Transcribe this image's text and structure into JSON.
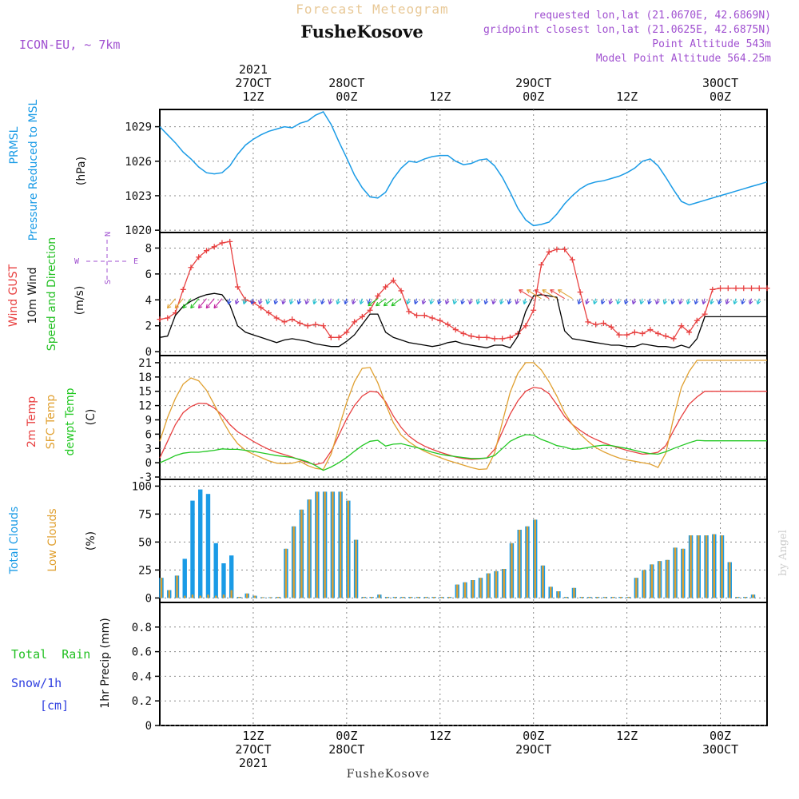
{
  "header": {
    "title": "Forecast Meteogram",
    "location": "FusheKosove",
    "model": "ICON-EU, ~ 7km",
    "requested": "requested lon,lat (21.0670E, 42.6869N)",
    "closest": "gridpoint closest lon,lat (21.0625E, 42.6875N)",
    "point_alt": "Point Altitude 543m",
    "model_alt": "Model Point Altitude 564.25m",
    "footer_location": "FusheKosove",
    "credit": "by Angel"
  },
  "colors": {
    "pressure": "#1a9be6",
    "gust": "#e84040",
    "wind": "#000000",
    "dir": "#22c022",
    "temp": "#e84040",
    "sfc": "#e0a030",
    "dew": "#22c822",
    "total_cloud": "#1a9be6",
    "low_cloud": "#e0a030",
    "rain": "#22c022",
    "snow": "#3040e0",
    "meta": "#a050d0"
  },
  "time_axis": {
    "top_labels": [
      {
        "hour": 12,
        "lines": [
          "2021",
          "27OCT",
          "12Z"
        ]
      },
      {
        "hour": 24,
        "lines": [
          "28OCT",
          "00Z"
        ]
      },
      {
        "hour": 36,
        "lines": [
          "12Z"
        ]
      },
      {
        "hour": 48,
        "lines": [
          "29OCT",
          "00Z"
        ]
      },
      {
        "hour": 60,
        "lines": [
          "12Z"
        ]
      },
      {
        "hour": 72,
        "lines": [
          "30OCT",
          "00Z"
        ]
      }
    ],
    "bottom_labels": [
      {
        "hour": 12,
        "lines": [
          "12Z",
          "27OCT",
          "2021"
        ]
      },
      {
        "hour": 24,
        "lines": [
          "00Z",
          "28OCT"
        ]
      },
      {
        "hour": 36,
        "lines": [
          "12Z"
        ]
      },
      {
        "hour": 48,
        "lines": [
          "00Z",
          "29OCT"
        ]
      },
      {
        "hour": 60,
        "lines": [
          "12Z"
        ]
      },
      {
        "hour": 72,
        "lines": [
          "00Z",
          "30OCT"
        ]
      }
    ]
  },
  "panel_labels": {
    "pressure": {
      "name1": "PRMSL",
      "name2": "Pressure Reduced to MSL",
      "unit": "(hPa)"
    },
    "wind": {
      "gust": "Wind GUST",
      "wind": "10m Wind",
      "dir": "Speed and Direction",
      "unit": "(m/s)",
      "compass_w": "W",
      "compass_e": "E",
      "compass_n": "N",
      "compass_s": "S"
    },
    "temp": {
      "t2m": "2m Temp",
      "sfc": "SFC Temp",
      "dew": "dewpt Temp",
      "unit": "(C)"
    },
    "cloud": {
      "total": "Total Clouds",
      "low": "Low Clouds",
      "unit": "(%)"
    },
    "precip": {
      "rain": "Total  Rain",
      "snow": "Snow/1h",
      "snow_unit": "[cm]",
      "axis": "1hr Precip (mm)"
    }
  },
  "chart_data": [
    {
      "type": "line",
      "name": "pressure",
      "xlabel": "",
      "ylabel": "(hPa)",
      "ylim": [
        1019.8,
        1030.5
      ],
      "yticks": [
        1020,
        1023,
        1026,
        1029
      ],
      "x": [
        0,
        1,
        2,
        3,
        4,
        5,
        6,
        7,
        8,
        9,
        10,
        11,
        12,
        13,
        14,
        15,
        16,
        17,
        18,
        19,
        20,
        21,
        22,
        23,
        24,
        25,
        26,
        27,
        28,
        29,
        30,
        31,
        32,
        33,
        34,
        35,
        36,
        37,
        38,
        39,
        40,
        41,
        42,
        43,
        44,
        45,
        46,
        47,
        48,
        49,
        50,
        51,
        52,
        53,
        54,
        55,
        56,
        57,
        58,
        59,
        60,
        61,
        62,
        63,
        64,
        65,
        66,
        67,
        68,
        69,
        70,
        71,
        72,
        73,
        74,
        75,
        76,
        77,
        78
      ],
      "values": [
        1029.0,
        1028.3,
        1027.6,
        1026.8,
        1026.2,
        1025.5,
        1025.0,
        1024.9,
        1025.0,
        1025.6,
        1026.6,
        1027.4,
        1027.9,
        1028.3,
        1028.6,
        1028.8,
        1029.0,
        1028.9,
        1029.3,
        1029.5,
        1030.0,
        1030.3,
        1029.2,
        1027.7,
        1026.3,
        1024.8,
        1023.7,
        1022.9,
        1022.8,
        1023.3,
        1024.5,
        1025.4,
        1026.0,
        1025.9,
        1026.2,
        1026.4,
        1026.5,
        1026.5,
        1026.0,
        1025.7,
        1025.8,
        1026.1,
        1026.2,
        1025.6,
        1024.6,
        1023.3,
        1021.9,
        1020.9,
        1020.4,
        1020.5,
        1020.7,
        1021.4,
        1022.3,
        1023.0,
        1023.6,
        1024.0,
        1024.2,
        1024.3,
        1024.5,
        1024.7,
        1025.0,
        1025.4,
        1026.0,
        1026.2,
        1025.6,
        1024.6,
        1023.5,
        1022.5,
        1022.2,
        1022.4,
        1022.6,
        1022.8,
        1023.0,
        1023.2,
        1023.4,
        1023.6,
        1023.8,
        1024.0,
        1024.2
      ]
    },
    {
      "type": "line",
      "name": "wind",
      "xlabel": "",
      "ylabel": "(m/s)",
      "ylim": [
        -0.3,
        9.2
      ],
      "yticks": [
        0,
        2,
        4,
        6,
        8
      ],
      "x": [
        0,
        1,
        2,
        3,
        4,
        5,
        6,
        7,
        8,
        9,
        10,
        11,
        12,
        13,
        14,
        15,
        16,
        17,
        18,
        19,
        20,
        21,
        22,
        23,
        24,
        25,
        26,
        27,
        28,
        29,
        30,
        31,
        32,
        33,
        34,
        35,
        36,
        37,
        38,
        39,
        40,
        41,
        42,
        43,
        44,
        45,
        46,
        47,
        48,
        49,
        50,
        51,
        52,
        53,
        54,
        55,
        56,
        57,
        58,
        59,
        60,
        61,
        62,
        63,
        64,
        65,
        66,
        67,
        68,
        69,
        70,
        71,
        72,
        73,
        74,
        75,
        76,
        77,
        78
      ],
      "series": [
        {
          "name": "Wind GUST",
          "values": [
            2.5,
            2.6,
            3.0,
            4.8,
            6.5,
            7.3,
            7.8,
            8.1,
            8.4,
            8.5,
            5.0,
            4.0,
            3.8,
            3.4,
            3.0,
            2.6,
            2.3,
            2.5,
            2.2,
            2.0,
            2.1,
            2.0,
            1.1,
            1.1,
            1.5,
            2.3,
            2.7,
            3.2,
            4.3,
            5.0,
            5.5,
            4.7,
            3.1,
            2.8,
            2.8,
            2.6,
            2.4,
            2.1,
            1.7,
            1.4,
            1.2,
            1.1,
            1.1,
            1.0,
            1.0,
            1.1,
            1.4,
            2.0,
            3.2,
            6.7,
            7.7,
            7.9,
            7.9,
            7.1,
            4.6,
            2.3,
            2.1,
            2.2,
            1.9,
            1.3,
            1.3,
            1.5,
            1.4,
            1.7,
            1.4,
            1.2,
            1.0,
            2.0,
            1.5,
            2.4,
            2.9,
            4.8,
            4.9,
            4.9,
            4.9,
            4.9,
            4.9,
            4.9,
            4.9
          ]
        },
        {
          "name": "10m Wind",
          "values": [
            1.1,
            1.2,
            2.8,
            3.5,
            3.9,
            4.2,
            4.4,
            4.5,
            4.4,
            3.6,
            2.0,
            1.5,
            1.3,
            1.1,
            0.9,
            0.7,
            0.9,
            1.0,
            0.9,
            0.8,
            0.6,
            0.5,
            0.4,
            0.4,
            0.8,
            1.3,
            2.1,
            2.9,
            2.9,
            1.5,
            1.1,
            0.9,
            0.7,
            0.6,
            0.5,
            0.4,
            0.5,
            0.7,
            0.8,
            0.6,
            0.5,
            0.4,
            0.3,
            0.5,
            0.5,
            0.3,
            1.2,
            3.1,
            4.3,
            4.4,
            4.3,
            4.2,
            1.6,
            1.0,
            0.9,
            0.8,
            0.7,
            0.6,
            0.5,
            0.5,
            0.4,
            0.4,
            0.6,
            0.5,
            0.4,
            0.4,
            0.3,
            0.5,
            0.3,
            1.0,
            2.7,
            2.7,
            2.7,
            2.7,
            2.7,
            2.7,
            2.7,
            2.7,
            2.7
          ]
        }
      ]
    },
    {
      "type": "line",
      "name": "temperature",
      "xlabel": "",
      "ylabel": "(C)",
      "ylim": [
        -3.5,
        22.5
      ],
      "yticks": [
        -3,
        0,
        3,
        6,
        9,
        12,
        15,
        18,
        21
      ],
      "x": [
        0,
        1,
        2,
        3,
        4,
        5,
        6,
        7,
        8,
        9,
        10,
        11,
        12,
        13,
        14,
        15,
        16,
        17,
        18,
        19,
        20,
        21,
        22,
        23,
        24,
        25,
        26,
        27,
        28,
        29,
        30,
        31,
        32,
        33,
        34,
        35,
        36,
        37,
        38,
        39,
        40,
        41,
        42,
        43,
        44,
        45,
        46,
        47,
        48,
        49,
        50,
        51,
        52,
        53,
        54,
        55,
        56,
        57,
        58,
        59,
        60,
        61,
        62,
        63,
        64,
        65,
        66,
        67,
        68,
        69,
        70,
        71,
        72,
        73,
        74,
        75,
        76,
        77,
        78
      ],
      "series": [
        {
          "name": "2m Temp",
          "values": [
            1.0,
            4.5,
            8.0,
            10.5,
            11.8,
            12.5,
            12.4,
            11.5,
            10.0,
            8.0,
            6.5,
            5.5,
            4.5,
            3.6,
            2.8,
            2.2,
            1.7,
            1.2,
            0.6,
            0.0,
            -0.4,
            0.0,
            2.4,
            5.8,
            9.2,
            12.0,
            14.0,
            15.0,
            14.8,
            12.8,
            9.8,
            7.4,
            5.6,
            4.4,
            3.5,
            2.8,
            2.2,
            1.7,
            1.2,
            0.9,
            0.7,
            0.8,
            1.0,
            2.8,
            6.5,
            10.2,
            13.0,
            15.0,
            15.8,
            15.6,
            14.5,
            12.2,
            9.7,
            8.0,
            6.8,
            5.7,
            4.9,
            4.2,
            3.6,
            3.1,
            2.6,
            2.2,
            1.8,
            1.9,
            2.2,
            3.6,
            6.8,
            9.7,
            12.3,
            13.8,
            15.0,
            15.0,
            15.0,
            15.0,
            15.0,
            15.0,
            15.0,
            15.0,
            15.0
          ]
        },
        {
          "name": "SFC Temp",
          "values": [
            4.5,
            9.5,
            13.5,
            16.5,
            17.8,
            17.2,
            15.2,
            12.2,
            9.0,
            6.2,
            4.0,
            2.6,
            1.8,
            1.1,
            0.4,
            -0.1,
            -0.2,
            -0.1,
            0.3,
            -0.6,
            -1.2,
            -1.4,
            1.8,
            7.3,
            12.6,
            17.0,
            19.8,
            20.0,
            16.8,
            12.4,
            8.4,
            5.8,
            4.4,
            3.3,
            2.4,
            1.7,
            1.1,
            0.5,
            0.0,
            -0.5,
            -1.0,
            -1.4,
            -1.3,
            2.0,
            8.5,
            14.8,
            18.8,
            21.0,
            21.0,
            19.5,
            17.0,
            14.0,
            10.5,
            8.0,
            6.0,
            4.5,
            3.2,
            2.3,
            1.6,
            1.0,
            0.6,
            0.3,
            0.0,
            -0.3,
            -1.0,
            2.0,
            9.5,
            15.8,
            19.2,
            21.5,
            21.5,
            21.5,
            21.5,
            21.5,
            21.5,
            21.5,
            21.5,
            21.5,
            21.5
          ]
        },
        {
          "name": "dewpt Temp",
          "values": [
            0.0,
            0.7,
            1.5,
            2.0,
            2.2,
            2.2,
            2.4,
            2.6,
            2.9,
            2.8,
            2.8,
            2.6,
            2.4,
            2.1,
            1.8,
            1.5,
            1.3,
            1.1,
            0.7,
            0.2,
            -0.6,
            -1.6,
            -0.9,
            0.0,
            1.1,
            2.4,
            3.6,
            4.5,
            4.7,
            3.5,
            3.9,
            4.0,
            3.6,
            3.2,
            2.7,
            2.2,
            1.8,
            1.5,
            1.3,
            1.1,
            0.9,
            0.9,
            1.0,
            1.5,
            3.0,
            4.5,
            5.3,
            5.9,
            5.8,
            4.9,
            4.3,
            3.6,
            3.3,
            2.8,
            2.9,
            3.2,
            3.5,
            3.7,
            3.6,
            3.3,
            3.0,
            2.6,
            2.2,
            1.9,
            1.8,
            2.3,
            3.0,
            3.6,
            4.2,
            4.7,
            4.6,
            4.6,
            4.6,
            4.6,
            4.6,
            4.6,
            4.6,
            4.6,
            4.6
          ]
        }
      ]
    },
    {
      "type": "bar",
      "name": "clouds",
      "xlabel": "",
      "ylabel": "(%)",
      "ylim": [
        -4,
        106
      ],
      "yticks": [
        0,
        25,
        50,
        75,
        100
      ],
      "x": [
        0,
        1,
        2,
        3,
        4,
        5,
        6,
        7,
        8,
        9,
        10,
        11,
        12,
        13,
        14,
        15,
        16,
        17,
        18,
        19,
        20,
        21,
        22,
        23,
        24,
        25,
        26,
        27,
        28,
        29,
        30,
        31,
        32,
        33,
        34,
        35,
        36,
        37,
        38,
        39,
        40,
        41,
        42,
        43,
        44,
        45,
        46,
        47,
        48,
        49,
        50,
        51,
        52,
        53,
        54,
        55,
        56,
        57,
        58,
        59,
        60,
        61,
        62,
        63,
        64,
        65,
        66,
        67,
        68,
        69,
        70,
        71,
        72,
        73,
        74,
        75,
        76
      ],
      "series": [
        {
          "name": "Total Clouds",
          "values": [
            18,
            7,
            20,
            35,
            87,
            97,
            93,
            49,
            31,
            38,
            1,
            4,
            2,
            0,
            0,
            1,
            44,
            64,
            79,
            88,
            95,
            95,
            95,
            95,
            87,
            52,
            1,
            1,
            3,
            1,
            1,
            1,
            1,
            1,
            1,
            1,
            1,
            1,
            12,
            14,
            16,
            18,
            22,
            24,
            26,
            49,
            61,
            64,
            70,
            29,
            10,
            6,
            1,
            9,
            1,
            1,
            1,
            1,
            1,
            1,
            1,
            18,
            25,
            30,
            33,
            34,
            45,
            44,
            56,
            56,
            56,
            57,
            56,
            32,
            1,
            1,
            3
          ]
        },
        {
          "name": "Low Clouds",
          "values": [
            18,
            7,
            20,
            2,
            3,
            2,
            3,
            2,
            3,
            7,
            1,
            4,
            2,
            0,
            0,
            1,
            44,
            64,
            79,
            88,
            95,
            95,
            95,
            95,
            87,
            52,
            1,
            1,
            3,
            1,
            1,
            1,
            1,
            1,
            1,
            1,
            1,
            1,
            12,
            14,
            16,
            18,
            22,
            24,
            26,
            49,
            61,
            64,
            70,
            29,
            10,
            6,
            1,
            9,
            1,
            1,
            1,
            1,
            1,
            1,
            1,
            18,
            25,
            30,
            33,
            34,
            45,
            44,
            56,
            56,
            56,
            57,
            56,
            32,
            1,
            1,
            3
          ]
        }
      ]
    },
    {
      "type": "bar",
      "name": "precipitation",
      "xlabel": "",
      "ylabel": "1hr Precip (mm)",
      "ylim": [
        0,
        1.0
      ],
      "yticks": [
        0,
        0.2,
        0.4,
        0.6,
        0.8
      ],
      "series": [
        {
          "name": "Total Rain",
          "values": []
        },
        {
          "name": "Snow/1h",
          "values": []
        }
      ]
    }
  ]
}
